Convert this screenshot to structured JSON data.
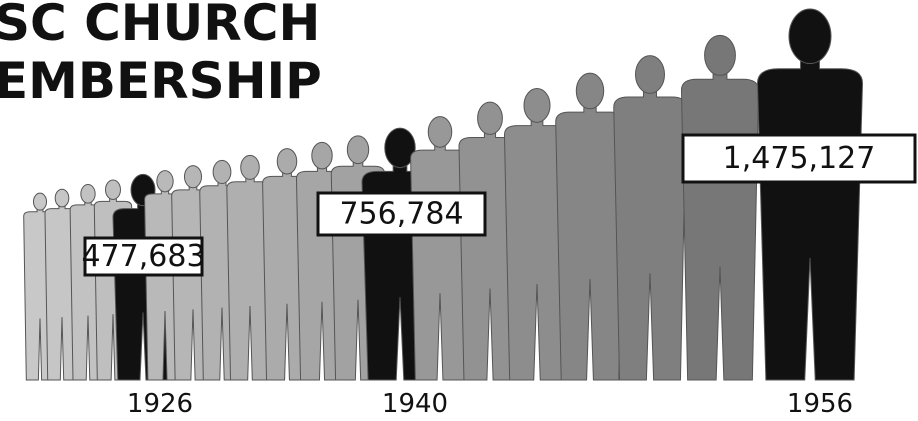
{
  "chart_data": {
    "type": "pictogram",
    "title_lines": [
      "SC CHURCH",
      "EMBERSHIP"
    ],
    "categories": [
      "1926",
      "1940",
      "1956"
    ],
    "values": [
      477683,
      756784,
      1475127
    ],
    "value_labels": [
      "477,683",
      "756,784",
      "1,475,127"
    ],
    "color": "#111111"
  }
}
